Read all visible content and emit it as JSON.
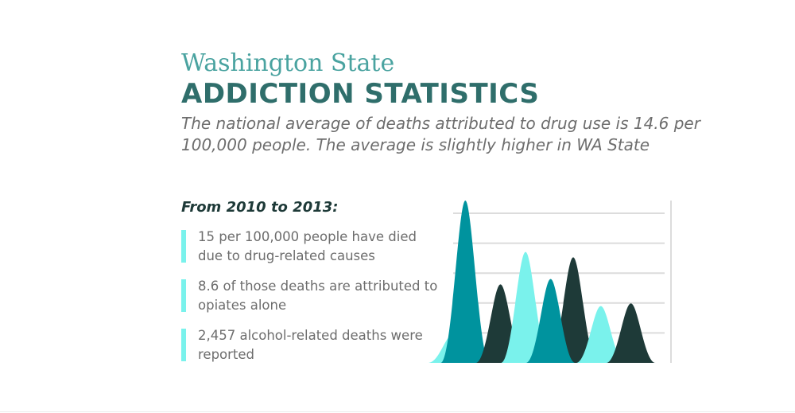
{
  "header": {
    "subtitle": "Washington State",
    "title": "ADDICTION STATISTICS",
    "intro": "The national average of deaths attributed to drug use is 14.6 per 100,000 people. The average is slightly higher in WA State"
  },
  "stats": {
    "period": "From 2010 to 2013:",
    "items": [
      {
        "text": "15 per 100,000 people have died due to drug-related causes"
      },
      {
        "text": "8.6 of those deaths are attributed to opiates alone"
      },
      {
        "text": "2,457 alcohol-related deaths were reported"
      }
    ]
  },
  "colors": {
    "accent_light": "#7af2ec",
    "accent_teal": "#00939e",
    "accent_dark": "#1e3a38",
    "title": "#2f6e6b",
    "subtitle": "#4aa3a0"
  },
  "chart_data": {
    "type": "area",
    "title": "",
    "xlabel": "",
    "ylabel": "",
    "ylim": [
      0,
      6
    ],
    "grid": true,
    "gridlines": 5,
    "decorative": true,
    "series": [
      {
        "color": "#7af2ec",
        "center": 1.0,
        "value": 1.05
      },
      {
        "color": "#00939e",
        "center": 1.5,
        "value": 6.0
      },
      {
        "color": "#1e3a38",
        "center": 2.9,
        "value": 2.9
      },
      {
        "color": "#7af2ec",
        "center": 3.9,
        "value": 4.1
      },
      {
        "color": "#1e3a38",
        "center": 5.8,
        "value": 3.9
      },
      {
        "color": "#00939e",
        "center": 4.9,
        "value": 3.1
      },
      {
        "color": "#7af2ec",
        "center": 6.9,
        "value": 2.1
      },
      {
        "color": "#1e3a38",
        "center": 8.1,
        "value": 2.2
      }
    ]
  }
}
